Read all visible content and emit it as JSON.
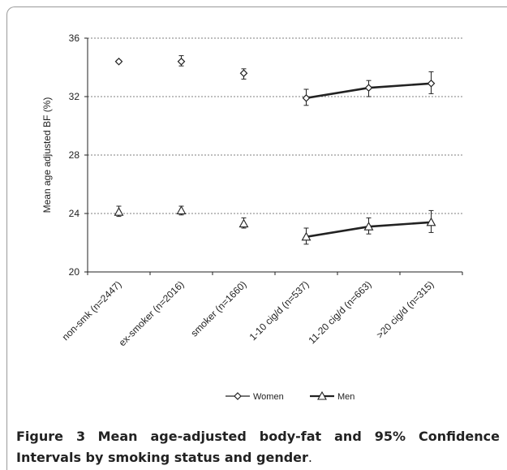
{
  "chart_data": {
    "type": "scatter",
    "title": "",
    "ylabel": "Mean age adjusted BF (%)",
    "xlabel": "",
    "ylim": [
      20,
      36
    ],
    "yticks": [
      20,
      24,
      28,
      32,
      36
    ],
    "grid": "horizontal dashed",
    "legend_placement": "bottom",
    "categories": [
      "non-smk (n=2447)",
      "ex-smoker (n=2016)",
      "smoker (n=1660)",
      "1-10 cig/d (n=537)",
      "11-20 cig/d (n=663)",
      ">20 cig/d (n=315)"
    ],
    "line_connected_categories": [
      3,
      4,
      5
    ],
    "series": [
      {
        "name": "Women",
        "marker": "diamond",
        "values": [
          34.4,
          34.4,
          33.6,
          31.9,
          32.6,
          32.9
        ],
        "ci_low": [
          34.3,
          34.1,
          33.2,
          31.4,
          32.0,
          32.2
        ],
        "ci_high": [
          34.5,
          34.8,
          33.9,
          32.5,
          33.1,
          33.7
        ]
      },
      {
        "name": "Men",
        "marker": "triangle",
        "values": [
          24.1,
          24.2,
          23.3,
          22.4,
          23.1,
          23.4
        ],
        "ci_low": [
          23.8,
          23.9,
          23.0,
          21.9,
          22.6,
          22.7
        ],
        "ci_high": [
          24.5,
          24.5,
          23.7,
          23.0,
          23.7,
          24.2
        ]
      }
    ],
    "colors": {
      "axis": "#222222",
      "grid": "#555555",
      "marker_fill": "#ffffff"
    }
  },
  "caption": {
    "label": "Figure 3",
    "text": "Mean age-adjusted body-fat and 95% Confidence Intervals by smoking status and gender",
    "end": "."
  }
}
